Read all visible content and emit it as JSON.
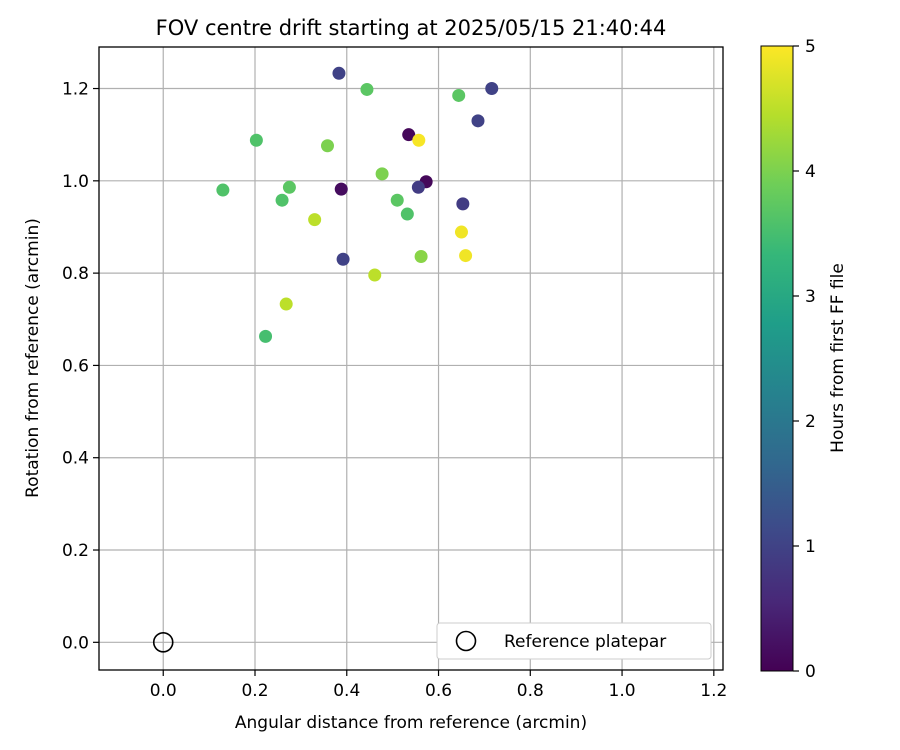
{
  "chart_data": {
    "type": "scatter",
    "title": "FOV centre drift starting at 2025/05/15 21:40:44",
    "xlabel": "Angular distance from reference (arcmin)",
    "ylabel": "Rotation from reference (arcmin)",
    "xlim": [
      -0.14,
      1.22
    ],
    "ylim": [
      -0.06,
      1.29
    ],
    "xticks": [
      0.0,
      0.2,
      0.4,
      0.6,
      0.8,
      1.0,
      1.2
    ],
    "xtick_labels": [
      "0.0",
      "0.2",
      "0.4",
      "0.6",
      "0.8",
      "1.0",
      "1.2"
    ],
    "yticks": [
      0.0,
      0.2,
      0.4,
      0.6,
      0.8,
      1.0,
      1.2
    ],
    "ytick_labels": [
      "0.0",
      "0.2",
      "0.4",
      "0.6",
      "0.8",
      "1.0",
      "1.2"
    ],
    "grid": true,
    "legend": {
      "position": "bottom-right",
      "entries": [
        {
          "label": "Reference platepar",
          "marker": "hollow-circle"
        }
      ]
    },
    "reference_point": {
      "x": 0.0,
      "y": 0.0
    },
    "colorbar": {
      "label": "Hours from first FF file",
      "range": [
        0,
        5
      ],
      "ticks": [
        0,
        1,
        2,
        3,
        4,
        5
      ],
      "tick_labels": [
        "0",
        "1",
        "2",
        "3",
        "4",
        "5"
      ],
      "colormap": "viridis",
      "colormap_stops": [
        "#440154",
        "#482878",
        "#3e4989",
        "#31688e",
        "#26828e",
        "#1f9e89",
        "#35b779",
        "#6ece58",
        "#b5de2b",
        "#fde725"
      ]
    },
    "points": [
      {
        "x": 0.535,
        "y": 1.1,
        "hours": 0.1
      },
      {
        "x": 0.573,
        "y": 0.998,
        "hours": 0.1
      },
      {
        "x": 0.388,
        "y": 0.982,
        "hours": 0.15
      },
      {
        "x": 0.383,
        "y": 1.233,
        "hours": 1.0
      },
      {
        "x": 0.716,
        "y": 1.2,
        "hours": 1.0
      },
      {
        "x": 0.686,
        "y": 1.13,
        "hours": 1.0
      },
      {
        "x": 0.556,
        "y": 0.986,
        "hours": 0.9
      },
      {
        "x": 0.653,
        "y": 0.95,
        "hours": 0.9
      },
      {
        "x": 0.392,
        "y": 0.83,
        "hours": 1.0
      },
      {
        "x": 0.444,
        "y": 1.198,
        "hours": 3.7
      },
      {
        "x": 0.644,
        "y": 1.185,
        "hours": 3.7
      },
      {
        "x": 0.203,
        "y": 1.088,
        "hours": 3.6
      },
      {
        "x": 0.13,
        "y": 0.98,
        "hours": 3.6
      },
      {
        "x": 0.275,
        "y": 0.986,
        "hours": 3.7
      },
      {
        "x": 0.259,
        "y": 0.958,
        "hours": 3.6
      },
      {
        "x": 0.51,
        "y": 0.958,
        "hours": 3.7
      },
      {
        "x": 0.532,
        "y": 0.928,
        "hours": 3.6
      },
      {
        "x": 0.223,
        "y": 0.663,
        "hours": 3.5
      },
      {
        "x": 0.358,
        "y": 1.076,
        "hours": 4.0
      },
      {
        "x": 0.477,
        "y": 1.015,
        "hours": 4.0
      },
      {
        "x": 0.562,
        "y": 0.836,
        "hours": 4.1
      },
      {
        "x": 0.33,
        "y": 0.916,
        "hours": 4.5
      },
      {
        "x": 0.461,
        "y": 0.796,
        "hours": 4.5
      },
      {
        "x": 0.268,
        "y": 0.733,
        "hours": 4.5
      },
      {
        "x": 0.557,
        "y": 1.088,
        "hours": 4.95
      },
      {
        "x": 0.65,
        "y": 0.889,
        "hours": 4.9
      },
      {
        "x": 0.659,
        "y": 0.838,
        "hours": 4.9
      }
    ]
  }
}
